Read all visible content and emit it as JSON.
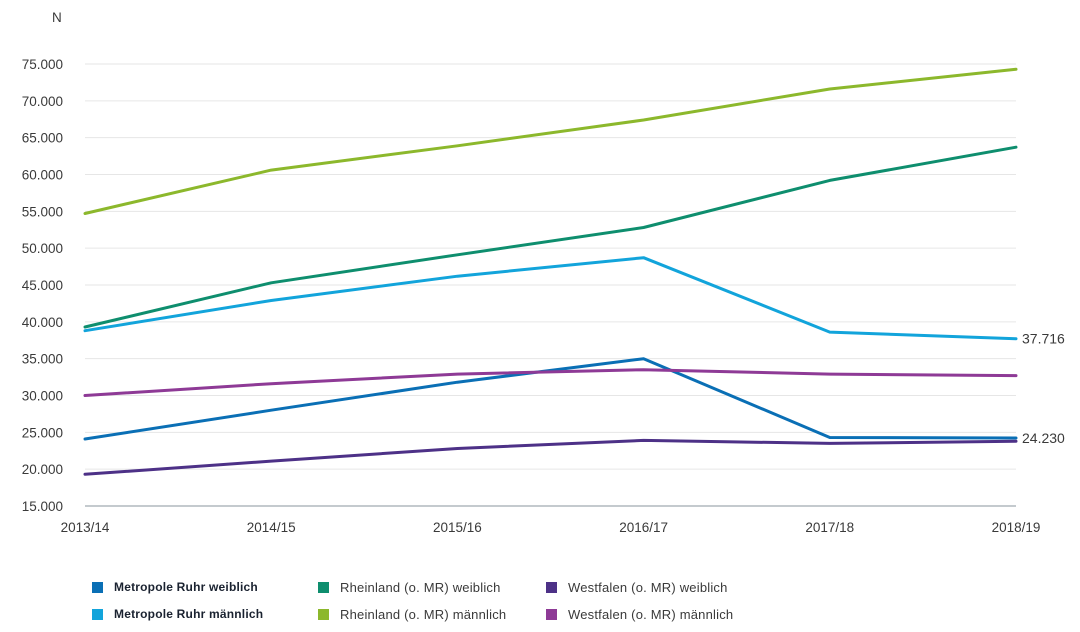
{
  "chart_data": {
    "type": "line",
    "unit_label": "N",
    "categories": [
      "2013/14",
      "2014/15",
      "2015/16",
      "2016/17",
      "2017/18",
      "2018/19"
    ],
    "ylim": [
      15000,
      75000
    ],
    "yticks": [
      "15.000",
      "20.000",
      "25.000",
      "30.000",
      "35.000",
      "40.000",
      "45.000",
      "50.000",
      "55.000",
      "60.000",
      "65.000",
      "70.000",
      "75.000"
    ],
    "ytick_values": [
      15000,
      20000,
      25000,
      30000,
      35000,
      40000,
      45000,
      50000,
      55000,
      60000,
      65000,
      70000,
      75000
    ],
    "grid": true,
    "series": [
      {
        "name": "Metropole Ruhr weiblich",
        "color": "#0a6fb5",
        "bold": true,
        "values": [
          24100,
          28000,
          31800,
          35000,
          24300,
          24230
        ],
        "end_label": "24.230"
      },
      {
        "name": "Metropole Ruhr männlich",
        "color": "#12a4db",
        "bold": true,
        "values": [
          38800,
          42900,
          46200,
          48700,
          38600,
          37716
        ],
        "end_label": "37.716"
      },
      {
        "name": "Rheinland (o. MR) weiblich",
        "color": "#0e8e6e",
        "bold": false,
        "values": [
          39300,
          45300,
          49100,
          52800,
          59200,
          63700
        ],
        "end_label": ""
      },
      {
        "name": "Rheinland (o. MR) männlich",
        "color": "#8cb82c",
        "bold": false,
        "values": [
          54700,
          60600,
          63900,
          67400,
          71600,
          74300
        ],
        "end_label": ""
      },
      {
        "name": "Westfalen (o. MR) weiblich",
        "color": "#4d3187",
        "bold": false,
        "values": [
          19300,
          21100,
          22800,
          23900,
          23500,
          23800
        ],
        "end_label": ""
      },
      {
        "name": "Westfalen (o. MR) männlich",
        "color": "#8e3a96",
        "bold": false,
        "values": [
          30000,
          31600,
          32900,
          33500,
          32900,
          32700
        ],
        "end_label": ""
      }
    ],
    "legend_position": "bottom"
  }
}
